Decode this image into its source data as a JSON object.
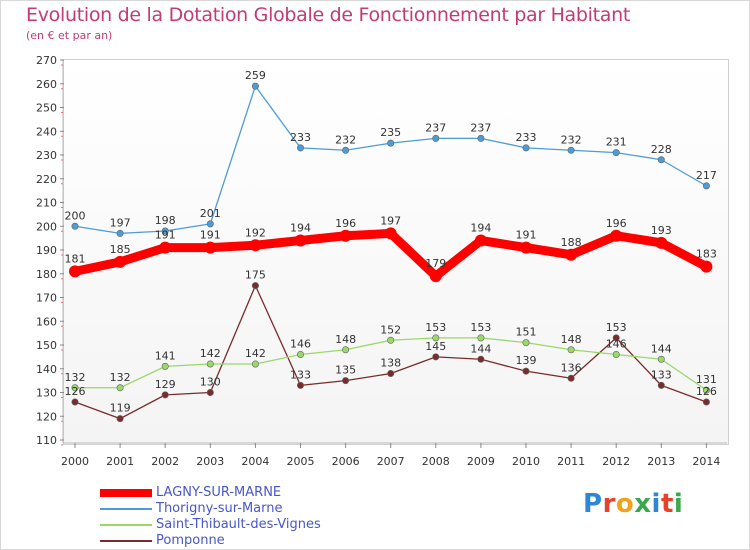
{
  "chart_data": {
    "type": "line",
    "title": "Evolution de la Dotation Globale de Fonctionnement par Habitant",
    "subtitle": "(en € et par an)",
    "categories": [
      "2000",
      "2001",
      "2002",
      "2003",
      "2004",
      "2005",
      "2006",
      "2007",
      "2008",
      "2009",
      "2010",
      "2011",
      "2012",
      "2013",
      "2014"
    ],
    "ylim": [
      110,
      270
    ],
    "yticks": [
      110,
      120,
      130,
      140,
      150,
      160,
      170,
      180,
      190,
      200,
      210,
      220,
      230,
      240,
      250,
      260,
      270
    ],
    "grid": false,
    "legend_position": "bottom-left",
    "series": [
      {
        "name": "LAGNY-SUR-MARNE",
        "color": "#ff0000",
        "values": [
          181,
          185,
          191,
          191,
          192,
          194,
          196,
          197,
          179,
          194,
          191,
          188,
          196,
          193,
          183
        ]
      },
      {
        "name": "Thorigny-sur-Marne",
        "color": "#4e9bd6",
        "values": [
          200,
          197,
          198,
          201,
          259,
          233,
          232,
          235,
          237,
          237,
          233,
          232,
          231,
          228,
          217
        ]
      },
      {
        "name": "Saint-Thibault-des-Vignes",
        "color": "#9ad86a",
        "values": [
          132,
          132,
          141,
          142,
          142,
          146,
          148,
          152,
          153,
          153,
          151,
          148,
          146,
          144,
          131
        ]
      },
      {
        "name": "Pomponne",
        "color": "#7a2b2b",
        "values": [
          126,
          119,
          129,
          130,
          175,
          133,
          135,
          138,
          145,
          144,
          139,
          136,
          153,
          133,
          126
        ]
      }
    ]
  },
  "logo": {
    "letters": [
      "P",
      "r",
      "o",
      "x",
      "i",
      "t",
      "i"
    ],
    "alt": "Proxiti"
  }
}
